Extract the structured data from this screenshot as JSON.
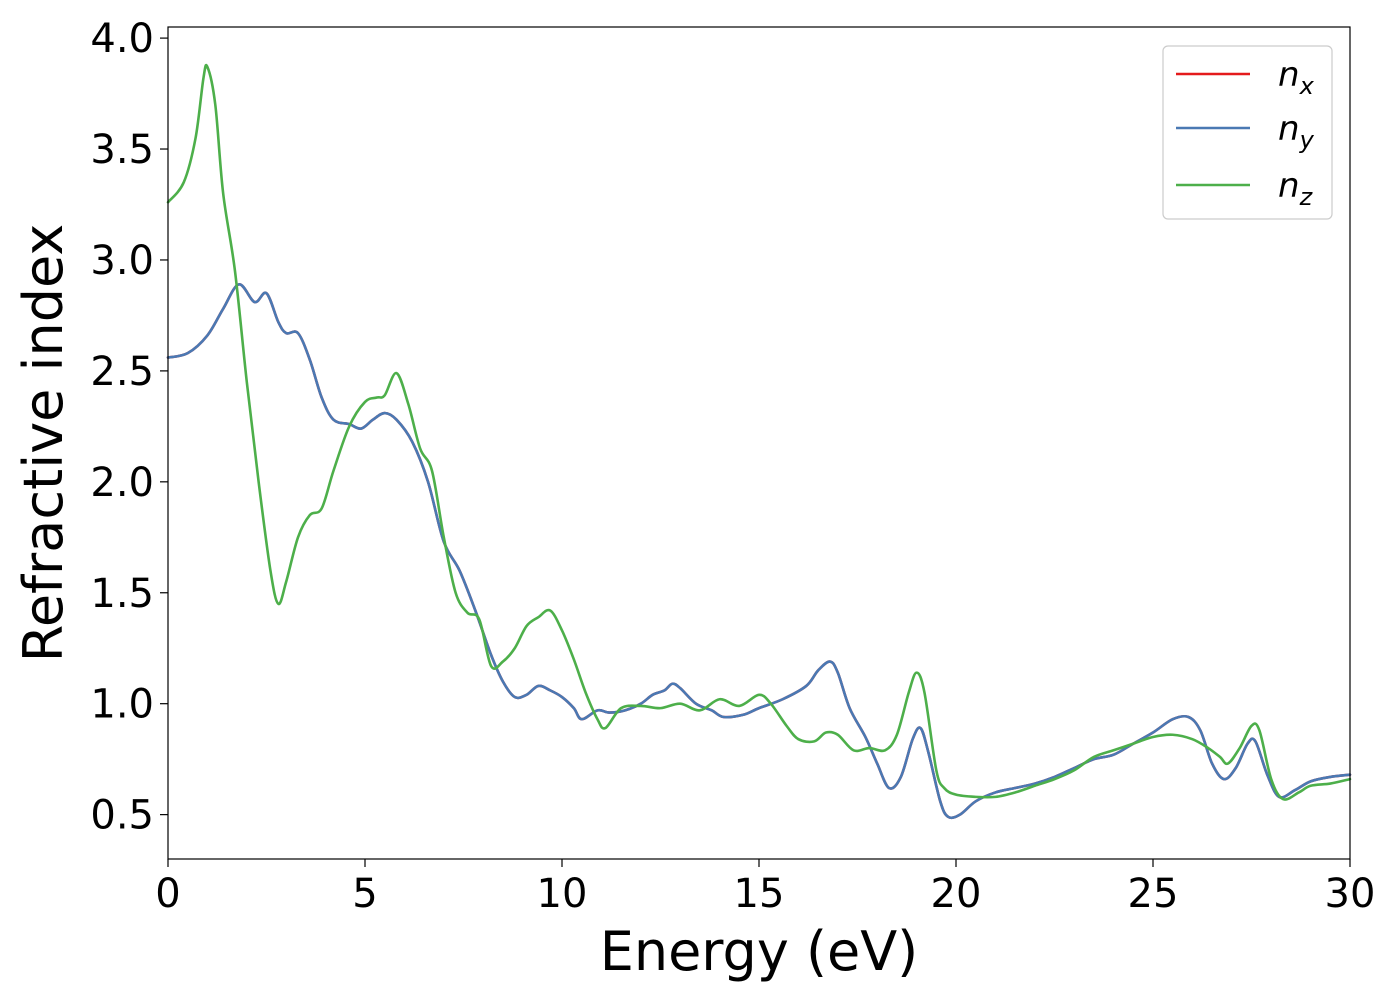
{
  "chart_data": {
    "type": "line",
    "title": "",
    "xlabel": "Energy (eV)",
    "ylabel": "Refractive index",
    "xlim": [
      0,
      30
    ],
    "ylim": [
      0.3,
      4.05
    ],
    "x_ticks": [
      0,
      5,
      10,
      15,
      20,
      25,
      30
    ],
    "x_tick_labels": [
      "0",
      "5",
      "10",
      "15",
      "20",
      "25",
      "30"
    ],
    "y_ticks": [
      0.5,
      1.0,
      1.5,
      2.0,
      2.5,
      3.0,
      3.5,
      4.0
    ],
    "y_tick_labels": [
      "0.5",
      "1.0",
      "1.5",
      "2.0",
      "2.5",
      "3.0",
      "3.5",
      "4.0"
    ],
    "grid": false,
    "legend_position": "top-right",
    "series": [
      {
        "name": "n_x",
        "legend_base": "n",
        "legend_sub": "x",
        "color": "#e41a1c",
        "points": [
          [
            0,
            2.56
          ],
          [
            0.5,
            2.58
          ],
          [
            1.0,
            2.66
          ],
          [
            1.4,
            2.78
          ],
          [
            1.8,
            2.89
          ],
          [
            2.2,
            2.81
          ],
          [
            2.5,
            2.85
          ],
          [
            2.8,
            2.72
          ],
          [
            3.0,
            2.67
          ],
          [
            3.3,
            2.67
          ],
          [
            3.6,
            2.55
          ],
          [
            3.9,
            2.38
          ],
          [
            4.2,
            2.28
          ],
          [
            4.6,
            2.26
          ],
          [
            4.9,
            2.24
          ],
          [
            5.2,
            2.28
          ],
          [
            5.5,
            2.31
          ],
          [
            5.8,
            2.28
          ],
          [
            6.2,
            2.18
          ],
          [
            6.6,
            2.0
          ],
          [
            7.0,
            1.73
          ],
          [
            7.4,
            1.6
          ],
          [
            7.8,
            1.42
          ],
          [
            8.2,
            1.22
          ],
          [
            8.5,
            1.1
          ],
          [
            8.8,
            1.03
          ],
          [
            9.1,
            1.04
          ],
          [
            9.4,
            1.08
          ],
          [
            9.7,
            1.06
          ],
          [
            10.0,
            1.03
          ],
          [
            10.3,
            0.98
          ],
          [
            10.5,
            0.93
          ],
          [
            10.9,
            0.97
          ],
          [
            11.2,
            0.96
          ],
          [
            11.6,
            0.97
          ],
          [
            12.0,
            1.0
          ],
          [
            12.3,
            1.04
          ],
          [
            12.6,
            1.06
          ],
          [
            12.8,
            1.09
          ],
          [
            13.0,
            1.07
          ],
          [
            13.4,
            1.0
          ],
          [
            13.8,
            0.97
          ],
          [
            14.1,
            0.94
          ],
          [
            14.6,
            0.95
          ],
          [
            15.0,
            0.98
          ],
          [
            15.6,
            1.02
          ],
          [
            16.2,
            1.08
          ],
          [
            16.5,
            1.15
          ],
          [
            16.8,
            1.19
          ],
          [
            17.0,
            1.14
          ],
          [
            17.3,
            0.98
          ],
          [
            17.7,
            0.85
          ],
          [
            18.0,
            0.73
          ],
          [
            18.3,
            0.62
          ],
          [
            18.6,
            0.67
          ],
          [
            18.9,
            0.84
          ],
          [
            19.1,
            0.89
          ],
          [
            19.3,
            0.78
          ],
          [
            19.6,
            0.56
          ],
          [
            19.8,
            0.49
          ],
          [
            20.1,
            0.5
          ],
          [
            20.5,
            0.56
          ],
          [
            21.0,
            0.6
          ],
          [
            21.5,
            0.62
          ],
          [
            22.0,
            0.64
          ],
          [
            22.5,
            0.67
          ],
          [
            23.0,
            0.71
          ],
          [
            23.5,
            0.75
          ],
          [
            24.0,
            0.77
          ],
          [
            24.5,
            0.82
          ],
          [
            25.0,
            0.87
          ],
          [
            25.5,
            0.93
          ],
          [
            25.9,
            0.94
          ],
          [
            26.2,
            0.88
          ],
          [
            26.5,
            0.73
          ],
          [
            26.8,
            0.66
          ],
          [
            27.1,
            0.71
          ],
          [
            27.4,
            0.82
          ],
          [
            27.6,
            0.83
          ],
          [
            27.9,
            0.68
          ],
          [
            28.2,
            0.58
          ],
          [
            28.6,
            0.61
          ],
          [
            29.0,
            0.65
          ],
          [
            29.5,
            0.67
          ],
          [
            30.0,
            0.68
          ]
        ]
      },
      {
        "name": "n_y",
        "legend_base": "n",
        "legend_sub": "y",
        "color": "#4a79b3",
        "points": [
          [
            0,
            2.56
          ],
          [
            0.5,
            2.58
          ],
          [
            1.0,
            2.66
          ],
          [
            1.4,
            2.78
          ],
          [
            1.8,
            2.89
          ],
          [
            2.2,
            2.81
          ],
          [
            2.5,
            2.85
          ],
          [
            2.8,
            2.72
          ],
          [
            3.0,
            2.67
          ],
          [
            3.3,
            2.67
          ],
          [
            3.6,
            2.55
          ],
          [
            3.9,
            2.38
          ],
          [
            4.2,
            2.28
          ],
          [
            4.6,
            2.26
          ],
          [
            4.9,
            2.24
          ],
          [
            5.2,
            2.28
          ],
          [
            5.5,
            2.31
          ],
          [
            5.8,
            2.28
          ],
          [
            6.2,
            2.18
          ],
          [
            6.6,
            2.0
          ],
          [
            7.0,
            1.73
          ],
          [
            7.4,
            1.6
          ],
          [
            7.8,
            1.42
          ],
          [
            8.2,
            1.22
          ],
          [
            8.5,
            1.1
          ],
          [
            8.8,
            1.03
          ],
          [
            9.1,
            1.04
          ],
          [
            9.4,
            1.08
          ],
          [
            9.7,
            1.06
          ],
          [
            10.0,
            1.03
          ],
          [
            10.3,
            0.98
          ],
          [
            10.5,
            0.93
          ],
          [
            10.9,
            0.97
          ],
          [
            11.2,
            0.96
          ],
          [
            11.6,
            0.97
          ],
          [
            12.0,
            1.0
          ],
          [
            12.3,
            1.04
          ],
          [
            12.6,
            1.06
          ],
          [
            12.8,
            1.09
          ],
          [
            13.0,
            1.07
          ],
          [
            13.4,
            1.0
          ],
          [
            13.8,
            0.97
          ],
          [
            14.1,
            0.94
          ],
          [
            14.6,
            0.95
          ],
          [
            15.0,
            0.98
          ],
          [
            15.6,
            1.02
          ],
          [
            16.2,
            1.08
          ],
          [
            16.5,
            1.15
          ],
          [
            16.8,
            1.19
          ],
          [
            17.0,
            1.14
          ],
          [
            17.3,
            0.98
          ],
          [
            17.7,
            0.85
          ],
          [
            18.0,
            0.73
          ],
          [
            18.3,
            0.62
          ],
          [
            18.6,
            0.67
          ],
          [
            18.9,
            0.84
          ],
          [
            19.1,
            0.89
          ],
          [
            19.3,
            0.78
          ],
          [
            19.6,
            0.56
          ],
          [
            19.8,
            0.49
          ],
          [
            20.1,
            0.5
          ],
          [
            20.5,
            0.56
          ],
          [
            21.0,
            0.6
          ],
          [
            21.5,
            0.62
          ],
          [
            22.0,
            0.64
          ],
          [
            22.5,
            0.67
          ],
          [
            23.0,
            0.71
          ],
          [
            23.5,
            0.75
          ],
          [
            24.0,
            0.77
          ],
          [
            24.5,
            0.82
          ],
          [
            25.0,
            0.87
          ],
          [
            25.5,
            0.93
          ],
          [
            25.9,
            0.94
          ],
          [
            26.2,
            0.88
          ],
          [
            26.5,
            0.73
          ],
          [
            26.8,
            0.66
          ],
          [
            27.1,
            0.71
          ],
          [
            27.4,
            0.82
          ],
          [
            27.6,
            0.83
          ],
          [
            27.9,
            0.68
          ],
          [
            28.2,
            0.58
          ],
          [
            28.6,
            0.61
          ],
          [
            29.0,
            0.65
          ],
          [
            29.5,
            0.67
          ],
          [
            30.0,
            0.68
          ]
        ]
      },
      {
        "name": "n_z",
        "legend_base": "n",
        "legend_sub": "z",
        "color": "#4daf4a",
        "points": [
          [
            0,
            3.26
          ],
          [
            0.4,
            3.35
          ],
          [
            0.7,
            3.55
          ],
          [
            0.9,
            3.82
          ],
          [
            1.0,
            3.87
          ],
          [
            1.2,
            3.7
          ],
          [
            1.4,
            3.3
          ],
          [
            1.7,
            2.95
          ],
          [
            2.0,
            2.45
          ],
          [
            2.3,
            2.0
          ],
          [
            2.6,
            1.6
          ],
          [
            2.8,
            1.45
          ],
          [
            3.0,
            1.55
          ],
          [
            3.3,
            1.75
          ],
          [
            3.6,
            1.85
          ],
          [
            3.9,
            1.88
          ],
          [
            4.2,
            2.05
          ],
          [
            4.6,
            2.25
          ],
          [
            5.0,
            2.36
          ],
          [
            5.3,
            2.38
          ],
          [
            5.5,
            2.39
          ],
          [
            5.8,
            2.49
          ],
          [
            6.1,
            2.35
          ],
          [
            6.4,
            2.15
          ],
          [
            6.7,
            2.05
          ],
          [
            7.0,
            1.75
          ],
          [
            7.3,
            1.5
          ],
          [
            7.6,
            1.41
          ],
          [
            7.9,
            1.38
          ],
          [
            8.2,
            1.17
          ],
          [
            8.5,
            1.19
          ],
          [
            8.8,
            1.25
          ],
          [
            9.1,
            1.35
          ],
          [
            9.4,
            1.39
          ],
          [
            9.7,
            1.42
          ],
          [
            10.0,
            1.33
          ],
          [
            10.3,
            1.2
          ],
          [
            10.6,
            1.05
          ],
          [
            10.9,
            0.93
          ],
          [
            11.1,
            0.89
          ],
          [
            11.5,
            0.98
          ],
          [
            12.0,
            0.99
          ],
          [
            12.5,
            0.98
          ],
          [
            13.0,
            1.0
          ],
          [
            13.5,
            0.97
          ],
          [
            14.0,
            1.02
          ],
          [
            14.5,
            0.99
          ],
          [
            15.0,
            1.04
          ],
          [
            15.3,
            1.0
          ],
          [
            15.7,
            0.9
          ],
          [
            16.0,
            0.84
          ],
          [
            16.4,
            0.83
          ],
          [
            16.7,
            0.87
          ],
          [
            17.0,
            0.86
          ],
          [
            17.4,
            0.79
          ],
          [
            17.8,
            0.8
          ],
          [
            18.2,
            0.79
          ],
          [
            18.5,
            0.86
          ],
          [
            18.8,
            1.05
          ],
          [
            19.0,
            1.14
          ],
          [
            19.2,
            1.05
          ],
          [
            19.5,
            0.7
          ],
          [
            19.7,
            0.62
          ],
          [
            20.0,
            0.59
          ],
          [
            20.5,
            0.58
          ],
          [
            21.0,
            0.58
          ],
          [
            21.5,
            0.6
          ],
          [
            22.0,
            0.63
          ],
          [
            22.5,
            0.66
          ],
          [
            23.0,
            0.7
          ],
          [
            23.5,
            0.76
          ],
          [
            24.0,
            0.79
          ],
          [
            24.5,
            0.82
          ],
          [
            25.0,
            0.85
          ],
          [
            25.5,
            0.86
          ],
          [
            26.0,
            0.84
          ],
          [
            26.4,
            0.8
          ],
          [
            26.7,
            0.76
          ],
          [
            26.9,
            0.73
          ],
          [
            27.2,
            0.8
          ],
          [
            27.5,
            0.9
          ],
          [
            27.7,
            0.88
          ],
          [
            28.0,
            0.66
          ],
          [
            28.3,
            0.57
          ],
          [
            28.7,
            0.6
          ],
          [
            29.0,
            0.63
          ],
          [
            29.5,
            0.64
          ],
          [
            30.0,
            0.66
          ]
        ]
      }
    ]
  }
}
